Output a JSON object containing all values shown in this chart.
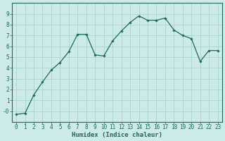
{
  "x": [
    0,
    1,
    2,
    3,
    4,
    5,
    6,
    7,
    8,
    9,
    10,
    11,
    12,
    13,
    14,
    15,
    16,
    17,
    18,
    19,
    20,
    21,
    22,
    23
  ],
  "y": [
    -0.3,
    -0.2,
    1.5,
    2.7,
    3.8,
    4.5,
    5.5,
    7.1,
    7.1,
    5.2,
    5.1,
    6.5,
    7.4,
    8.2,
    8.8,
    8.4,
    8.4,
    8.6,
    7.5,
    7.0,
    6.7,
    4.6,
    5.6,
    5.6
  ],
  "line_color": "#1a6b5a",
  "marker": "D",
  "marker_size": 1.8,
  "line_width": 0.9,
  "bg_color": "#cceae7",
  "grid_color": "#aad4d0",
  "xlabel": "Humidex (Indice chaleur)",
  "xlabel_fontsize": 6.5,
  "xlabel_fontweight": "bold",
  "tick_fontsize": 5.5,
  "ylim": [
    -1,
    10
  ],
  "xlim": [
    -0.5,
    23.5
  ],
  "yticks": [
    0,
    1,
    2,
    3,
    4,
    5,
    6,
    7,
    8,
    9
  ],
  "ytick_labels": [
    "-0",
    "1",
    "2",
    "3",
    "4",
    "5",
    "6",
    "7",
    "8",
    "9"
  ],
  "xticks": [
    0,
    1,
    2,
    3,
    4,
    5,
    6,
    7,
    8,
    9,
    10,
    11,
    12,
    13,
    14,
    15,
    16,
    17,
    18,
    19,
    20,
    21,
    22,
    23
  ]
}
